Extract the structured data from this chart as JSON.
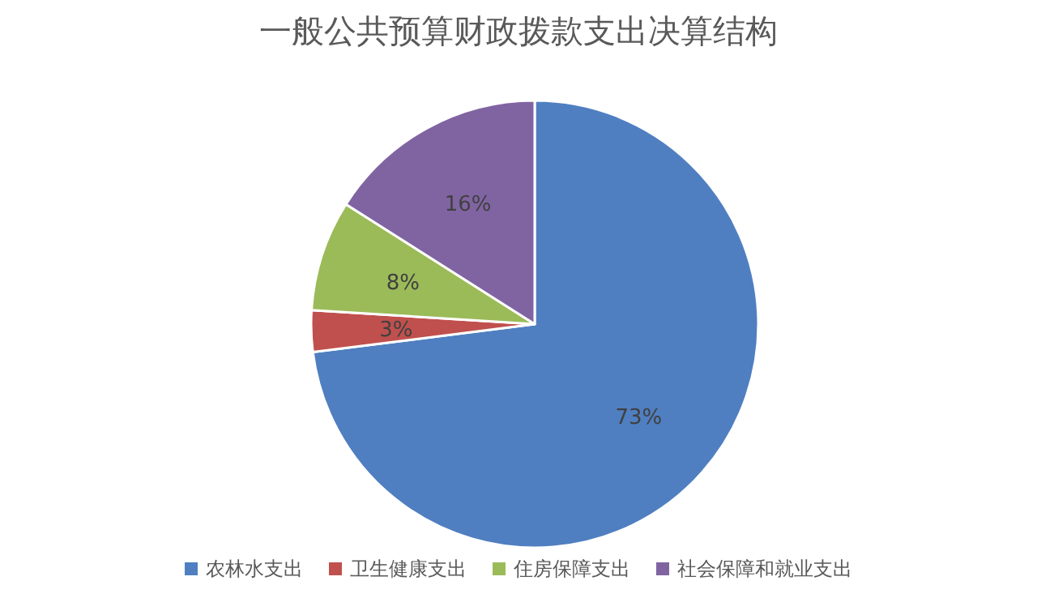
{
  "chart_data": {
    "type": "pie",
    "title": "一般公共预算财政拨款支出决算结构",
    "categories": [
      "农林水支出",
      "卫生健康支出",
      "住房保障支出",
      "社会保障和就业支出"
    ],
    "values": [
      73,
      3,
      8,
      16
    ],
    "colors": [
      "#4f7fc1",
      "#c0504d",
      "#9bbb59",
      "#8064a2"
    ],
    "value_labels": [
      "73%",
      "3%",
      "8%",
      "16%"
    ],
    "legend": "bottom"
  }
}
